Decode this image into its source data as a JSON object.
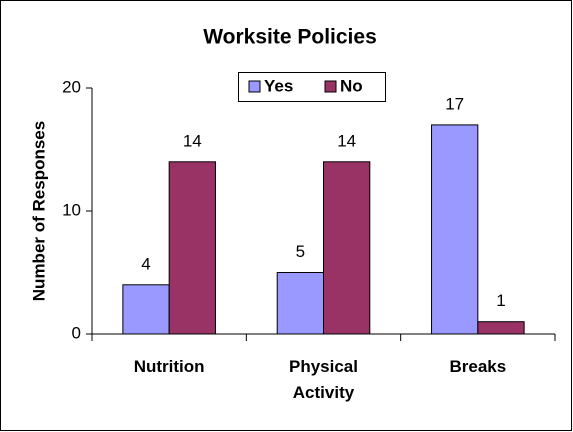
{
  "chart_data": {
    "type": "bar",
    "title": "Worksite Policies",
    "y_label": "Number of Responses",
    "categories": [
      "Nutrition",
      "Physical Activity",
      "Breaks"
    ],
    "series": [
      {
        "name": "Yes",
        "color": "#9999ff",
        "values": [
          4,
          5,
          17
        ]
      },
      {
        "name": "No",
        "color": "#993366",
        "values": [
          14,
          14,
          1
        ]
      }
    ],
    "ylim": [
      0,
      20
    ],
    "yticks": [
      0,
      10,
      20
    ],
    "legend": "top",
    "data_labels": true
  }
}
